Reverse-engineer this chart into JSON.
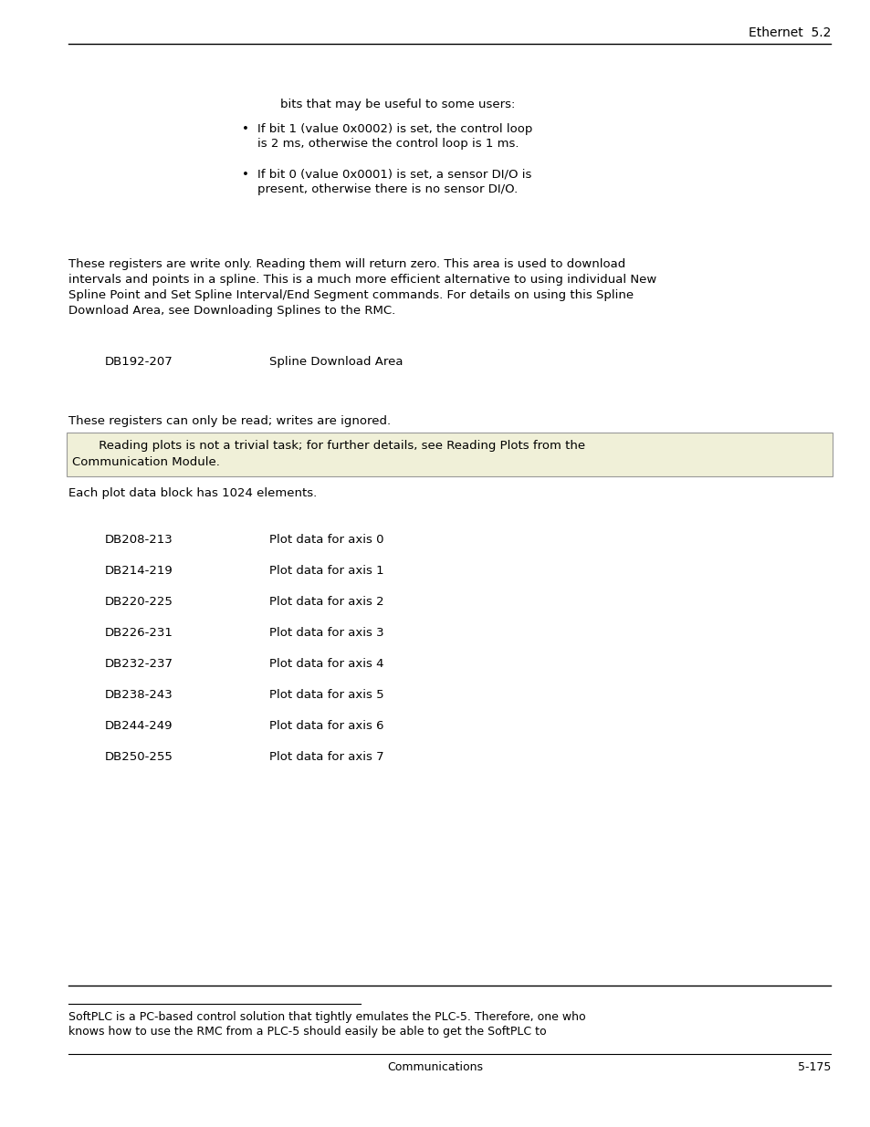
{
  "header_right": "Ethernet  5.2",
  "bullet_text_1_line1": "If bit 1 (value 0x0002) is set, the control loop",
  "bullet_text_1_line2": "is 2 ms, otherwise the control loop is 1 ms.",
  "bullet_text_2_line1": "If bit 0 (value 0x0001) is set, a sensor DI/O is",
  "bullet_text_2_line2": "present, otherwise there is no sensor DI/O.",
  "para1_line1": "These registers are write only. Reading them will return zero. This area is used to download",
  "para1_line2": "intervals and points in a spline. This is a much more efficient alternative to using individual New",
  "para1_line3": "Spline Point and Set Spline Interval/End Segment commands. For details on using this Spline",
  "para1_line4": "Download Area, see Downloading Splines to the RMC.",
  "db_spline_label": "DB192-207",
  "db_spline_desc": "Spline Download Area",
  "para2": "These registers can only be read; writes are ignored.",
  "note_line1": "     Reading plots is not a trivial task; for further details, see Reading Plots from the",
  "note_line2": "Communication Module.",
  "note_bg": "#f0f0d8",
  "note_border": "#999999",
  "each_plot_text": "Each plot data block has 1024 elements.",
  "db_entries": [
    [
      "DB208-213",
      "Plot data for axis 0"
    ],
    [
      "DB214-219",
      "Plot data for axis 1"
    ],
    [
      "DB220-225",
      "Plot data for axis 2"
    ],
    [
      "DB226-231",
      "Plot data for axis 3"
    ],
    [
      "DB232-237",
      "Plot data for axis 4"
    ],
    [
      "DB238-243",
      "Plot data for axis 5"
    ],
    [
      "DB244-249",
      "Plot data for axis 6"
    ],
    [
      "DB250-255",
      "Plot data for axis 7"
    ]
  ],
  "footer_left": "Communications",
  "footer_right": "5-175",
  "footnote_text_line1": "SoftPLC is a PC-based control solution that tightly emulates the PLC-5. Therefore, one who",
  "footnote_text_line2": "knows how to use the RMC from a PLC-5 should easily be able to get the SoftPLC to",
  "font_size_body": 9.5,
  "font_size_header": 10,
  "font_size_footer": 9,
  "text_color": "#000000",
  "bg_color": "#ffffff",
  "bits_intro": "bits that may be useful to some users:"
}
